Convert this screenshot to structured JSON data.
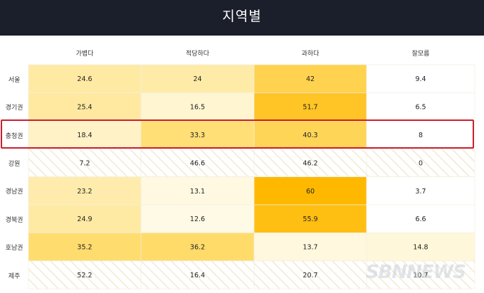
{
  "chart_data": {
    "type": "heatmap",
    "title": "지역별",
    "columns": [
      "가볍다",
      "적당하다",
      "과하다",
      "잘모름"
    ],
    "rows": [
      "서울",
      "경기권",
      "충청권",
      "강원",
      "경남권",
      "경북권",
      "호남권",
      "제주"
    ],
    "values": [
      [
        24.6,
        24,
        42,
        9.4
      ],
      [
        25.4,
        16.5,
        51.7,
        6.5
      ],
      [
        18.4,
        33.3,
        40.3,
        8
      ],
      [
        7.2,
        46.6,
        46.2,
        0
      ],
      [
        23.2,
        13.1,
        60,
        3.7
      ],
      [
        24.9,
        12.6,
        55.9,
        6.6
      ],
      [
        35.2,
        36.2,
        13.7,
        14.8
      ],
      [
        52.2,
        16.4,
        20.7,
        10.7
      ]
    ],
    "highlighted_row": "충청권",
    "hatched_rows": [
      "강원",
      "제주"
    ],
    "colors": {
      "low": "#ffffff",
      "mid": "#ffe07a",
      "high": "#ffb800",
      "highlight_border": "#cc1f2f",
      "background": "#1b1e2b"
    }
  },
  "watermark": "SBNNEWS"
}
